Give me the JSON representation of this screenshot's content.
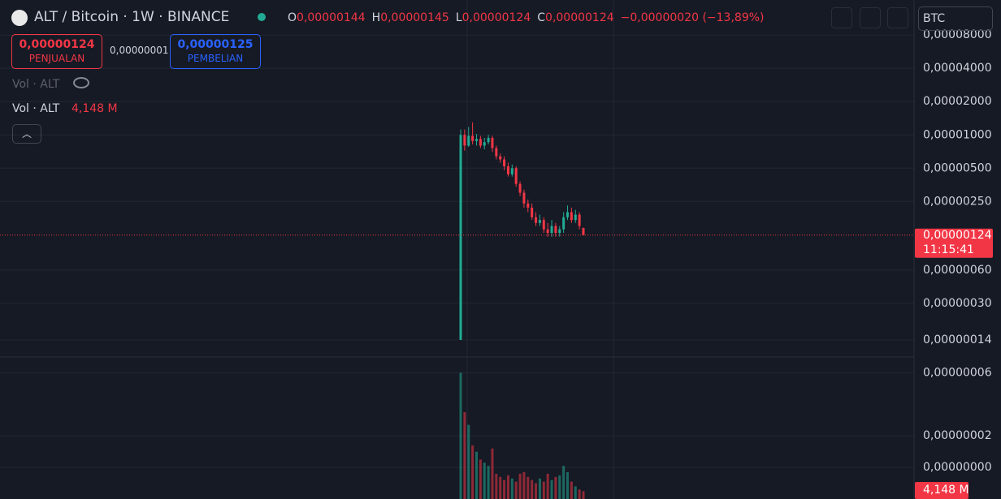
{
  "header": {
    "title": "ALT / Bitcoin · 1W · BINANCE",
    "ohlc": [
      {
        "key": "O",
        "value": "0,00000144"
      },
      {
        "key": "H",
        "value": "0,00000145"
      },
      {
        "key": "L",
        "value": "0,00000124"
      },
      {
        "key": "C",
        "value": "0,00000124"
      }
    ],
    "change": "−0,00000020 (−13,89%)",
    "currency": "BTC"
  },
  "trade": {
    "sell_price": "0,00000124",
    "sell_label": "PENJUALAN",
    "spread": "0,00000001",
    "buy_price": "0,00000125",
    "buy_label": "PEMBELIAN"
  },
  "legend": {
    "hidden_volume": "Vol · ALT",
    "volume_name": "Vol · ALT",
    "volume_value": "4,148 M"
  },
  "chart_data": {
    "type": "candlestick",
    "log_scale": true,
    "grid": true,
    "up_color": "#22ab94",
    "down_color": "#f23645",
    "ylim": [
      9.8e-08,
      0.000166
    ],
    "yticks": [
      {
        "value": 8e-05,
        "label": "0,00008000"
      },
      {
        "value": 4e-05,
        "label": "0,00004000"
      },
      {
        "value": 2e-05,
        "label": "0,00002000"
      },
      {
        "value": 1e-05,
        "label": "0,00001000"
      },
      {
        "value": 5e-06,
        "label": "0,00000500"
      },
      {
        "value": 2.5e-06,
        "label": "0,00000250"
      },
      {
        "value": 6e-07,
        "label": "0,00000060"
      },
      {
        "value": 3e-07,
        "label": "0,00000030"
      },
      {
        "value": 1.4e-07,
        "label": "0,00000014"
      }
    ],
    "last_price": {
      "value": 1.24e-06,
      "label": "0,00000124"
    },
    "countdown": "11:15:41",
    "open": [
      1.4e-07,
      1e-05,
      8e-06,
      9.8e-06,
      8.8e-06,
      9.2e-06,
      8e-06,
      8.6e-06,
      9.4e-06,
      7.6e-06,
      6.4e-06,
      6e-06,
      5.2e-06,
      4.4e-06,
      5e-06,
      3.6e-06,
      3e-06,
      2.4e-06,
      2.2e-06,
      1.8e-06,
      1.6e-06,
      1.7e-06,
      1.4e-06,
      1.3e-06,
      1.5e-06,
      1.3e-06,
      1.4e-06,
      1.8e-06,
      2e-06,
      1.7e-06,
      1.9e-06,
      1.44e-06
    ],
    "high": [
      1.12e-05,
      1.12e-05,
      1.18e-05,
      1.3e-05,
      1.02e-05,
      9.8e-06,
      9.4e-06,
      1e-05,
      9.8e-06,
      8e-06,
      6.8e-06,
      6.4e-06,
      5.6e-06,
      5.4e-06,
      5.2e-06,
      3.8e-06,
      3.2e-06,
      2.6e-06,
      2.4e-06,
      2e-06,
      1.9e-06,
      1.8e-06,
      1.6e-06,
      1.7e-06,
      1.6e-06,
      1.5e-06,
      2e-06,
      2.3e-06,
      2.2e-06,
      2.1e-06,
      2e-06,
      1.45e-06
    ],
    "low": [
      1.4e-07,
      7.2e-06,
      7.8e-06,
      8.2e-06,
      8e-06,
      7.6e-06,
      7.4e-06,
      8.2e-06,
      7e-06,
      6e-06,
      5.6e-06,
      4.8e-06,
      4.2e-06,
      4.2e-06,
      3.4e-06,
      2.8e-06,
      2.2e-06,
      2e-06,
      1.7e-06,
      1.5e-06,
      1.5e-06,
      1.3e-06,
      1.2e-06,
      1.2e-06,
      1.2e-06,
      1.2e-06,
      1.3e-06,
      1.7e-06,
      1.6e-06,
      1.6e-06,
      1.4e-06,
      1.24e-06
    ],
    "close": [
      1e-05,
      8e-06,
      9.8e-06,
      8.8e-06,
      9.2e-06,
      8e-06,
      8.6e-06,
      9.4e-06,
      7.6e-06,
      6.4e-06,
      6e-06,
      5.2e-06,
      4.4e-06,
      5e-06,
      3.6e-06,
      3e-06,
      2.4e-06,
      2.2e-06,
      1.8e-06,
      1.6e-06,
      1.7e-06,
      1.4e-06,
      1.3e-06,
      1.5e-06,
      1.3e-06,
      1.4e-06,
      1.8e-06,
      2e-06,
      1.7e-06,
      1.9e-06,
      1.5e-06,
      1.24e-06
    ],
    "volume": {
      "ylim": [
        -2e-08,
        7e-08
      ],
      "yticks": [
        {
          "value": 6e-08,
          "label": "0,00000006"
        },
        {
          "value": 2e-08,
          "label": "0,00000002"
        },
        {
          "value": 0,
          "label": "0,00000000"
        }
      ],
      "last_label": "4,148 M",
      "values": [
        6e-08,
        3.5e-08,
        2.7e-08,
        1.4e-08,
        1e-08,
        5e-09,
        3e-09,
        1e-09,
        1.2e-08,
        -4e-09,
        -6e-09,
        -8e-09,
        -5e-09,
        -7e-09,
        -9e-09,
        -4e-09,
        -3e-09,
        -6e-09,
        -8e-09,
        -1e-08,
        -7e-09,
        -9e-09,
        -4e-09,
        -8e-09,
        -6e-09,
        -5e-09,
        1e-09,
        -3e-09,
        -9e-09,
        -1.2e-08,
        -1.4e-08,
        -1.5e-08
      ]
    }
  }
}
